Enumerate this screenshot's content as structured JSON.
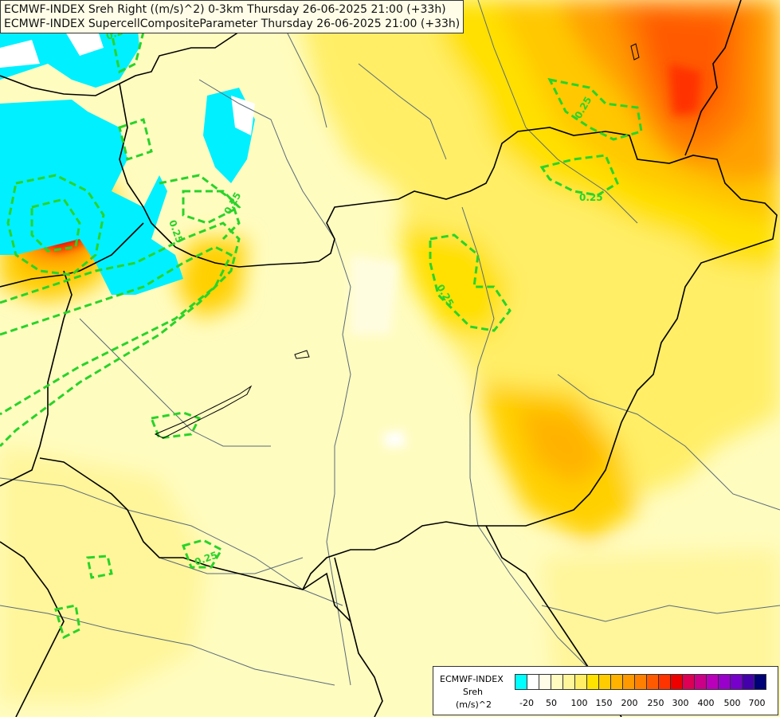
{
  "title": {
    "line1": "ECMWF-INDEX Sreh Right ((m/s)^2) 0-3km Thursday 26-06-2025 21:00 (+33h)",
    "line2": "ECMWF-INDEX SupercellCompositeParameter Thursday 26-06-2025 21:00 (+33h)"
  },
  "legend": {
    "source": "ECMWF-INDEX",
    "variable": "Sreh",
    "unit": "(m/s)^2",
    "ticks": [
      "-20",
      "50",
      "100",
      "150",
      "200",
      "250",
      "300",
      "400",
      "500",
      "700"
    ],
    "colors": [
      "#00ffff",
      "#ffffff",
      "#fffde8",
      "#fffbc0",
      "#fff59a",
      "#ffee66",
      "#ffe200",
      "#ffcc00",
      "#ffb300",
      "#ff9900",
      "#ff7f00",
      "#ff5a00",
      "#ff3300",
      "#ee0000",
      "#dd0055",
      "#cc0088",
      "#bb00bb",
      "#9900cc",
      "#7700cc",
      "#4400aa",
      "#000077"
    ]
  },
  "contour_labels": [
    "0.25",
    "0.25",
    "0.25",
    "0.25",
    "0.25",
    "0.25",
    "0.25"
  ],
  "colors": {
    "contour": "#29d329",
    "border": "#000000",
    "river": "#5a6a78"
  }
}
